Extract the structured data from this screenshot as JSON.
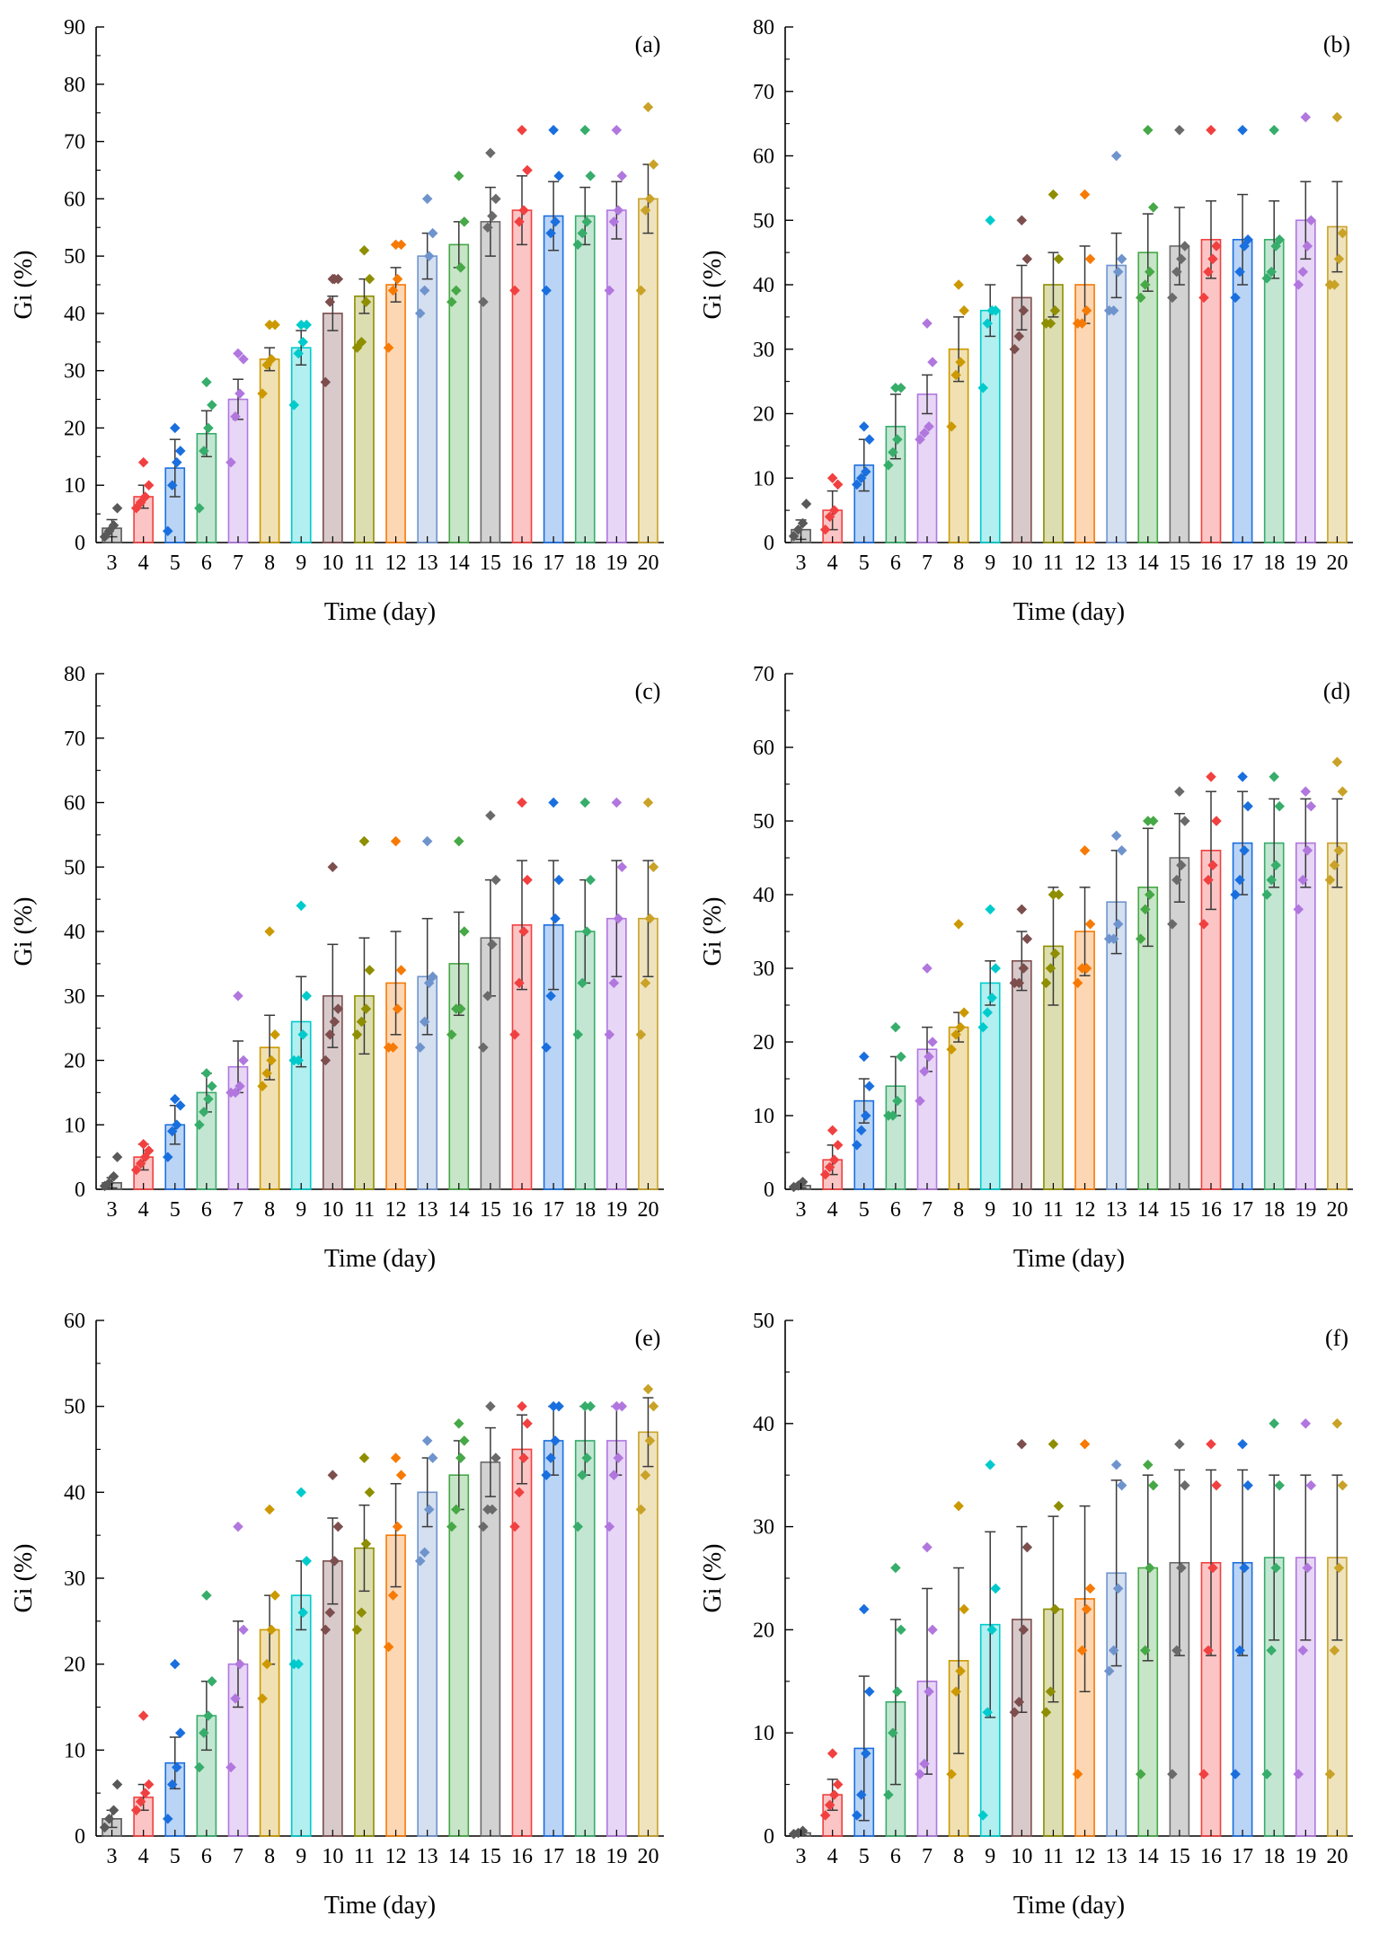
{
  "figure": {
    "xlabel": "Time (day)",
    "ylabel": "Gi (%)",
    "categories": [
      "3",
      "4",
      "5",
      "6",
      "7",
      "8",
      "9",
      "10",
      "11",
      "12",
      "13",
      "14",
      "15",
      "16",
      "17",
      "18",
      "19",
      "20"
    ],
    "palette": [
      "#595959",
      "#F14040",
      "#1A6FDF",
      "#37AD6B",
      "#B177DE",
      "#CC9900",
      "#00CBCC",
      "#7D4E4E",
      "#8E8E00",
      "#F77A05",
      "#6F94CD",
      "#46A846",
      "#6A6A6A",
      "#F14040",
      "#1A6FDF",
      "#37AD6B",
      "#B177DE",
      "#C9A227"
    ],
    "errorbar_color": "#3a3a3a"
  },
  "chart_data": [
    {
      "type": "bar",
      "panel_label": "(a)",
      "ylim": [
        0,
        90
      ],
      "ystep": 10,
      "bars": [
        2.5,
        8,
        13,
        19,
        25,
        32,
        34,
        40,
        43,
        45,
        50,
        52,
        56,
        58,
        57,
        57,
        58,
        60
      ],
      "errors": [
        1.5,
        2,
        5,
        4,
        3.5,
        2,
        3,
        3,
        3,
        3,
        4,
        4,
        6,
        6,
        6,
        5,
        5,
        6
      ],
      "points": [
        [
          1,
          2,
          3,
          6
        ],
        [
          6,
          7,
          8,
          10,
          14
        ],
        [
          2,
          10,
          14,
          16,
          20
        ],
        [
          6,
          16,
          20,
          24,
          28
        ],
        [
          14,
          22,
          26,
          32,
          33
        ],
        [
          26,
          31,
          32,
          38,
          38
        ],
        [
          24,
          33,
          35,
          38,
          38
        ],
        [
          28,
          42,
          46,
          46,
          46
        ],
        [
          34,
          35,
          42,
          46,
          51
        ],
        [
          34,
          44,
          46,
          52,
          52
        ],
        [
          40,
          44,
          50,
          54,
          60
        ],
        [
          42,
          44,
          48,
          56,
          64
        ],
        [
          42,
          55,
          57,
          60,
          68
        ],
        [
          44,
          56,
          58,
          65,
          72
        ],
        [
          44,
          54,
          56,
          64,
          72
        ],
        [
          52,
          54,
          56,
          64,
          72
        ],
        [
          44,
          56,
          58,
          64,
          72
        ],
        [
          44,
          58,
          60,
          66,
          76
        ]
      ]
    },
    {
      "type": "bar",
      "panel_label": "(b)",
      "ylim": [
        0,
        80
      ],
      "ystep": 10,
      "bars": [
        2,
        5,
        12,
        18,
        23,
        30,
        36,
        38,
        40,
        40,
        43,
        45,
        46,
        47,
        47,
        47,
        50,
        49
      ],
      "errors": [
        1.5,
        3,
        4,
        5,
        3,
        5,
        4,
        5,
        5,
        6,
        5,
        6,
        6,
        6,
        7,
        6,
        6,
        7
      ],
      "points": [
        [
          1,
          2,
          3,
          6
        ],
        [
          2,
          4,
          5,
          9,
          10
        ],
        [
          9,
          10,
          11,
          16,
          18
        ],
        [
          12,
          14,
          16,
          24,
          24
        ],
        [
          16,
          17,
          18,
          28,
          34
        ],
        [
          18,
          26,
          28,
          36,
          40
        ],
        [
          24,
          34,
          36,
          36,
          50
        ],
        [
          30,
          32,
          36,
          44,
          50
        ],
        [
          34,
          34,
          36,
          44,
          54
        ],
        [
          34,
          34,
          36,
          44,
          54
        ],
        [
          36,
          36,
          42,
          44,
          60
        ],
        [
          38,
          40,
          42,
          52,
          64
        ],
        [
          38,
          42,
          44,
          46,
          64
        ],
        [
          38,
          42,
          44,
          46,
          64
        ],
        [
          38,
          42,
          46,
          47,
          64
        ],
        [
          41,
          42,
          46,
          47,
          64
        ],
        [
          40,
          42,
          46,
          50,
          66
        ],
        [
          40,
          40,
          44,
          48,
          66
        ]
      ]
    },
    {
      "type": "bar",
      "panel_label": "(c)",
      "ylim": [
        0,
        80
      ],
      "ystep": 10,
      "bars": [
        1,
        5,
        10,
        15,
        19,
        22,
        26,
        30,
        30,
        32,
        33,
        35,
        39,
        41,
        41,
        40,
        42,
        42
      ],
      "errors": [
        0.8,
        2,
        3,
        3,
        4,
        5,
        7,
        8,
        9,
        8,
        9,
        8,
        9,
        10,
        10,
        8,
        9,
        9
      ],
      "points": [
        [
          0.5,
          1,
          2,
          5
        ],
        [
          3,
          4,
          5,
          6,
          7
        ],
        [
          5,
          9,
          10,
          13,
          14
        ],
        [
          10,
          12,
          14,
          16,
          18
        ],
        [
          15,
          15,
          16,
          20,
          30
        ],
        [
          16,
          18,
          20,
          24,
          40
        ],
        [
          20,
          20,
          24,
          30,
          44
        ],
        [
          20,
          24,
          26,
          28,
          50
        ],
        [
          24,
          26,
          28,
          34,
          54
        ],
        [
          22,
          22,
          28,
          34,
          54
        ],
        [
          22,
          26,
          32,
          33,
          54
        ],
        [
          24,
          28,
          28,
          40,
          54
        ],
        [
          22,
          30,
          38,
          48,
          58
        ],
        [
          24,
          32,
          40,
          48,
          60
        ],
        [
          22,
          30,
          42,
          48,
          60
        ],
        [
          24,
          32,
          40,
          48,
          60
        ],
        [
          24,
          32,
          42,
          50,
          60
        ],
        [
          24,
          32,
          42,
          50,
          60
        ]
      ]
    },
    {
      "type": "bar",
      "panel_label": "(d)",
      "ylim": [
        0,
        70
      ],
      "ystep": 10,
      "bars": [
        0.5,
        4,
        12,
        14,
        19,
        22,
        28,
        31,
        33,
        35,
        39,
        41,
        45,
        46,
        47,
        47,
        47,
        47
      ],
      "errors": [
        0.3,
        2,
        3,
        4,
        3,
        2,
        3,
        4,
        8,
        6,
        7,
        8,
        6,
        8,
        7,
        6,
        6,
        6
      ],
      "points": [
        [
          0.3,
          0.5,
          1
        ],
        [
          2,
          3,
          4,
          6,
          8
        ],
        [
          6,
          8,
          10,
          14,
          18
        ],
        [
          10,
          10,
          12,
          18,
          22
        ],
        [
          12,
          16,
          18,
          20,
          30
        ],
        [
          19,
          21,
          22,
          24,
          36
        ],
        [
          22,
          24,
          26,
          30,
          38
        ],
        [
          28,
          28,
          30,
          34,
          38
        ],
        [
          28,
          30,
          32,
          40,
          40
        ],
        [
          28,
          30,
          30,
          36,
          46
        ],
        [
          34,
          34,
          36,
          46,
          48
        ],
        [
          34,
          38,
          40,
          50,
          50
        ],
        [
          36,
          42,
          44,
          50,
          54
        ],
        [
          36,
          42,
          44,
          50,
          56
        ],
        [
          40,
          42,
          46,
          52,
          56
        ],
        [
          40,
          42,
          44,
          52,
          56
        ],
        [
          38,
          42,
          46,
          52,
          54
        ],
        [
          42,
          44,
          46,
          54,
          58
        ]
      ]
    },
    {
      "type": "bar",
      "panel_label": "(e)",
      "ylim": [
        0,
        60
      ],
      "ystep": 10,
      "bars": [
        2,
        4.5,
        8.5,
        14,
        20,
        24,
        28,
        32,
        33.5,
        35,
        40,
        42,
        43.5,
        45,
        46,
        46,
        46,
        47
      ],
      "errors": [
        1,
        1.5,
        3,
        4,
        5,
        4,
        4,
        5,
        5,
        6,
        4,
        4,
        4,
        4,
        4,
        4,
        4,
        4
      ],
      "points": [
        [
          1,
          2,
          3,
          6
        ],
        [
          3,
          4,
          5,
          6,
          14
        ],
        [
          2,
          6,
          8,
          12,
          20
        ],
        [
          8,
          12,
          14,
          18,
          28
        ],
        [
          8,
          16,
          20,
          24,
          36
        ],
        [
          16,
          20,
          24,
          28,
          38
        ],
        [
          20,
          20,
          26,
          32,
          40
        ],
        [
          24,
          26,
          32,
          36,
          42
        ],
        [
          24,
          26,
          34,
          40,
          44
        ],
        [
          22,
          28,
          36,
          42,
          44
        ],
        [
          32,
          33,
          38,
          44,
          46
        ],
        [
          36,
          38,
          44,
          46,
          48
        ],
        [
          36,
          38,
          38,
          44,
          50
        ],
        [
          36,
          40,
          44,
          48,
          50
        ],
        [
          42,
          44,
          46,
          50,
          50
        ],
        [
          36,
          42,
          44,
          50,
          50
        ],
        [
          36,
          42,
          44,
          50,
          50
        ],
        [
          38,
          42,
          46,
          50,
          52
        ]
      ]
    },
    {
      "type": "bar",
      "panel_label": "(f)",
      "ylim": [
        0,
        50
      ],
      "ystep": 10,
      "bars": [
        0.3,
        4,
        8.5,
        13,
        15,
        17,
        20.5,
        21,
        22,
        23,
        25.5,
        26,
        26.5,
        26.5,
        26.5,
        27,
        27,
        27
      ],
      "errors": [
        0.2,
        1.5,
        7,
        8,
        9,
        9,
        9,
        9,
        9,
        9,
        9,
        9,
        9,
        9,
        9,
        8,
        8,
        8
      ],
      "points": [
        [
          0.2,
          0.3,
          0.5
        ],
        [
          2,
          3,
          4,
          5,
          8
        ],
        [
          2,
          4,
          8,
          14,
          22
        ],
        [
          4,
          10,
          14,
          20,
          26
        ],
        [
          6,
          7,
          14,
          20,
          28
        ],
        [
          6,
          14,
          16,
          22,
          32
        ],
        [
          2,
          12,
          20,
          24,
          36
        ],
        [
          12,
          13,
          20,
          28,
          38
        ],
        [
          12,
          14,
          22,
          32,
          38
        ],
        [
          6,
          18,
          22,
          24,
          38
        ],
        [
          16,
          18,
          24,
          34,
          36
        ],
        [
          6,
          18,
          26,
          34,
          36
        ],
        [
          6,
          18,
          26,
          34,
          38
        ],
        [
          6,
          18,
          26,
          34,
          38
        ],
        [
          6,
          18,
          26,
          34,
          38
        ],
        [
          6,
          18,
          26,
          34,
          40
        ],
        [
          6,
          18,
          26,
          34,
          40
        ],
        [
          6,
          18,
          26,
          34,
          40
        ]
      ]
    }
  ]
}
